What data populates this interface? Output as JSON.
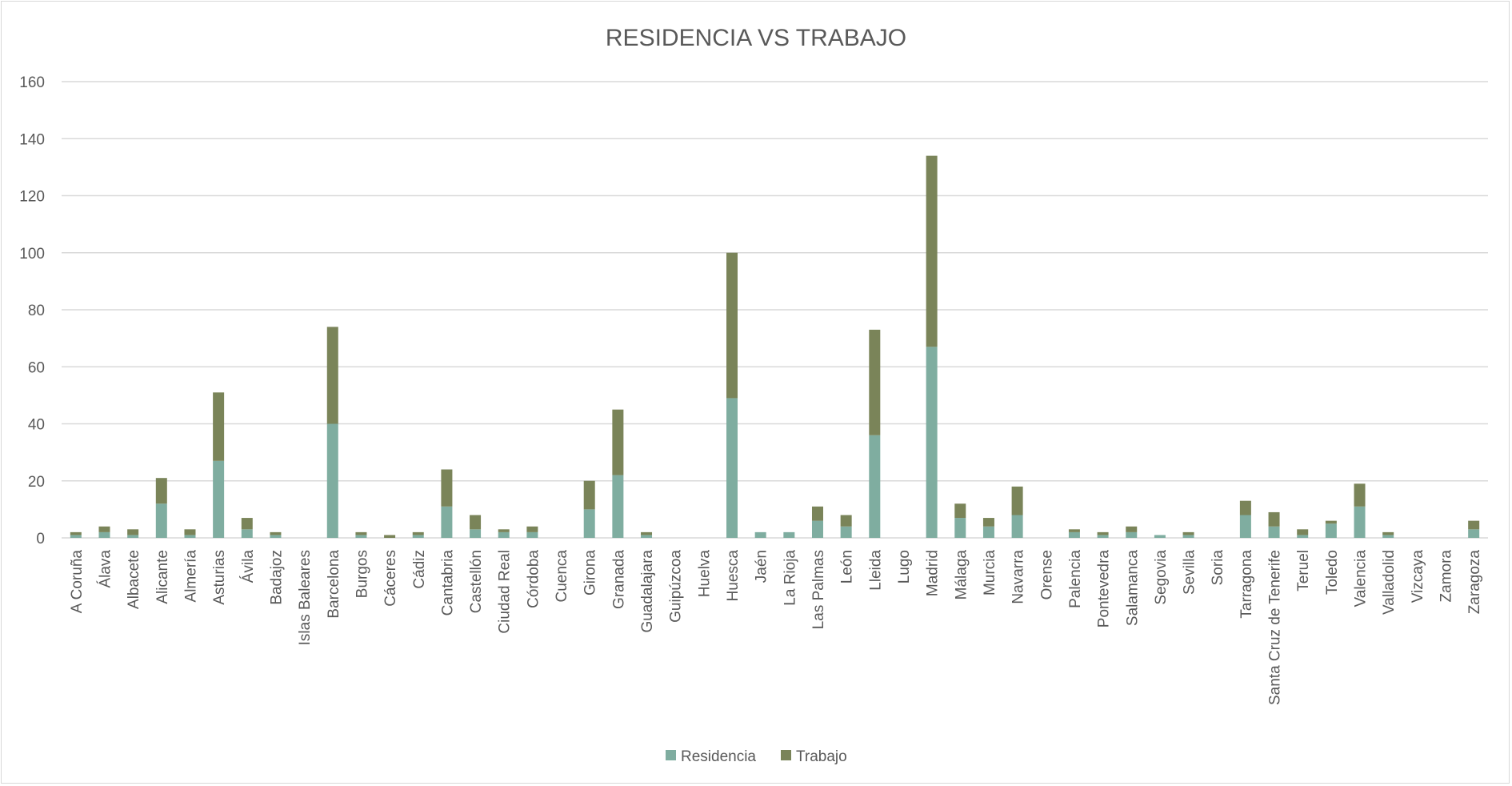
{
  "chart_data": {
    "type": "bar",
    "stacked": true,
    "title": "RESIDENCIA VS TRABAJO",
    "xlabel": "",
    "ylabel": "",
    "ylim": [
      0,
      160
    ],
    "yticks": [
      0,
      20,
      40,
      60,
      80,
      100,
      120,
      140,
      160
    ],
    "grid": true,
    "legend_position": "bottom",
    "categories": [
      "A Coruña",
      "Álava",
      "Albacete",
      "Alicante",
      "Almería",
      "Asturias",
      "Ávila",
      "Badajoz",
      "Islas Baleares",
      "Barcelona",
      "Burgos",
      "Cáceres",
      "Cádiz",
      "Cantabria",
      "Castellón",
      "Ciudad Real",
      "Córdoba",
      "Cuenca",
      "Girona",
      "Granada",
      "Guadalajara",
      "Guipúzcoa",
      "Huelva",
      "Huesca",
      "Jaén",
      "La Rioja",
      "Las Palmas",
      "León",
      "Lleida",
      "Lugo",
      "Madrid",
      "Málaga",
      "Murcia",
      "Navarra",
      "Orense",
      "Palencia",
      "Pontevedra",
      "Salamanca",
      "Segovia",
      "Sevilla",
      "Soria",
      "Tarragona",
      "Santa Cruz de Tenerife",
      "Teruel",
      "Toledo",
      "Valencia",
      "Valladolid",
      "Vizcaya",
      "Zamora",
      "Zaragoza"
    ],
    "series": [
      {
        "name": "Residencia",
        "color": "#7fada0",
        "values": [
          1,
          2,
          1,
          12,
          1,
          27,
          3,
          1,
          0,
          40,
          1,
          0,
          1,
          11,
          3,
          2,
          2,
          0,
          10,
          22,
          1,
          0,
          0,
          49,
          2,
          2,
          6,
          4,
          36,
          0,
          67,
          7,
          4,
          8,
          0,
          2,
          1,
          2,
          1,
          1,
          0,
          8,
          4,
          1,
          5,
          11,
          1,
          0,
          0,
          3
        ]
      },
      {
        "name": "Trabajo",
        "color": "#7a8459",
        "values": [
          1,
          2,
          2,
          9,
          2,
          24,
          4,
          1,
          0,
          34,
          1,
          1,
          1,
          13,
          5,
          1,
          2,
          0,
          10,
          23,
          1,
          0,
          0,
          51,
          0,
          0,
          5,
          4,
          37,
          0,
          67,
          5,
          3,
          10,
          0,
          1,
          1,
          2,
          0,
          1,
          0,
          5,
          5,
          2,
          1,
          8,
          1,
          0,
          0,
          3
        ]
      }
    ]
  }
}
